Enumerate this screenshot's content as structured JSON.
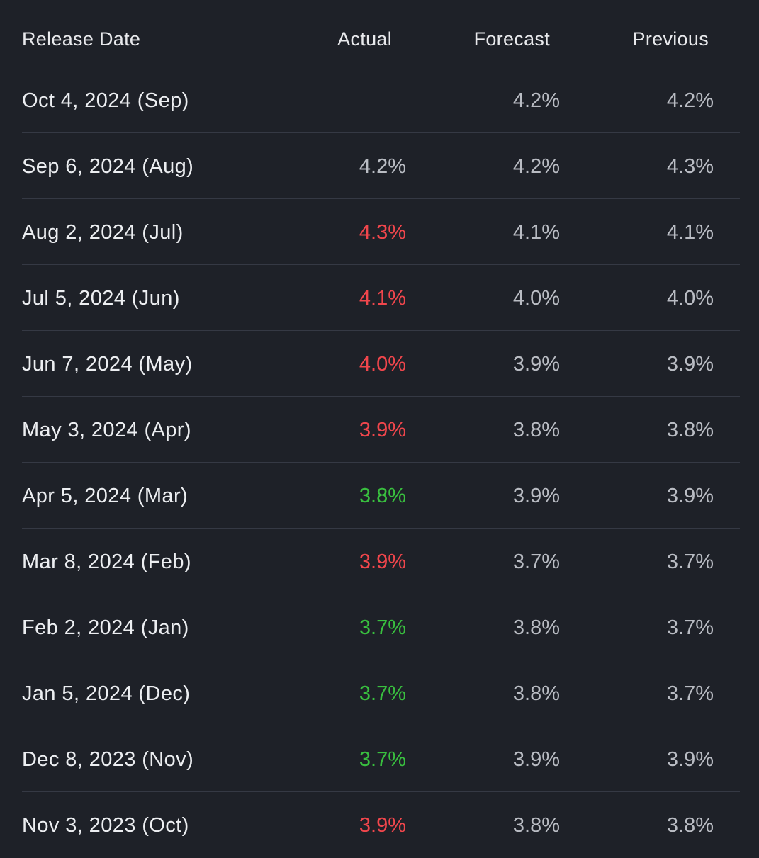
{
  "columns": {
    "release_date": "Release Date",
    "actual": "Actual",
    "forecast": "Forecast",
    "previous": "Previous"
  },
  "colors": {
    "background": "#1e2128",
    "text": "#e8e9ec",
    "muted": "#b9bcc3",
    "worse": "#f0464c",
    "better": "#39c03f",
    "divider": "#353944"
  },
  "rows": [
    {
      "date": "Oct 4, 2024 (Sep)",
      "actual": "",
      "actual_status": "neutral",
      "forecast": "4.2%",
      "previous": "4.2%"
    },
    {
      "date": "Sep 6, 2024 (Aug)",
      "actual": "4.2%",
      "actual_status": "neutral",
      "forecast": "4.2%",
      "previous": "4.3%"
    },
    {
      "date": "Aug 2, 2024 (Jul)",
      "actual": "4.3%",
      "actual_status": "red",
      "forecast": "4.1%",
      "previous": "4.1%"
    },
    {
      "date": "Jul 5, 2024 (Jun)",
      "actual": "4.1%",
      "actual_status": "red",
      "forecast": "4.0%",
      "previous": "4.0%"
    },
    {
      "date": "Jun 7, 2024 (May)",
      "actual": "4.0%",
      "actual_status": "red",
      "forecast": "3.9%",
      "previous": "3.9%"
    },
    {
      "date": "May 3, 2024 (Apr)",
      "actual": "3.9%",
      "actual_status": "red",
      "forecast": "3.8%",
      "previous": "3.8%"
    },
    {
      "date": "Apr 5, 2024 (Mar)",
      "actual": "3.8%",
      "actual_status": "green",
      "forecast": "3.9%",
      "previous": "3.9%"
    },
    {
      "date": "Mar 8, 2024 (Feb)",
      "actual": "3.9%",
      "actual_status": "red",
      "forecast": "3.7%",
      "previous": "3.7%"
    },
    {
      "date": "Feb 2, 2024 (Jan)",
      "actual": "3.7%",
      "actual_status": "green",
      "forecast": "3.8%",
      "previous": "3.7%"
    },
    {
      "date": "Jan 5, 2024 (Dec)",
      "actual": "3.7%",
      "actual_status": "green",
      "forecast": "3.8%",
      "previous": "3.7%"
    },
    {
      "date": "Dec 8, 2023 (Nov)",
      "actual": "3.7%",
      "actual_status": "green",
      "forecast": "3.9%",
      "previous": "3.9%"
    },
    {
      "date": "Nov 3, 2023 (Oct)",
      "actual": "3.9%",
      "actual_status": "red",
      "forecast": "3.8%",
      "previous": "3.8%"
    }
  ]
}
